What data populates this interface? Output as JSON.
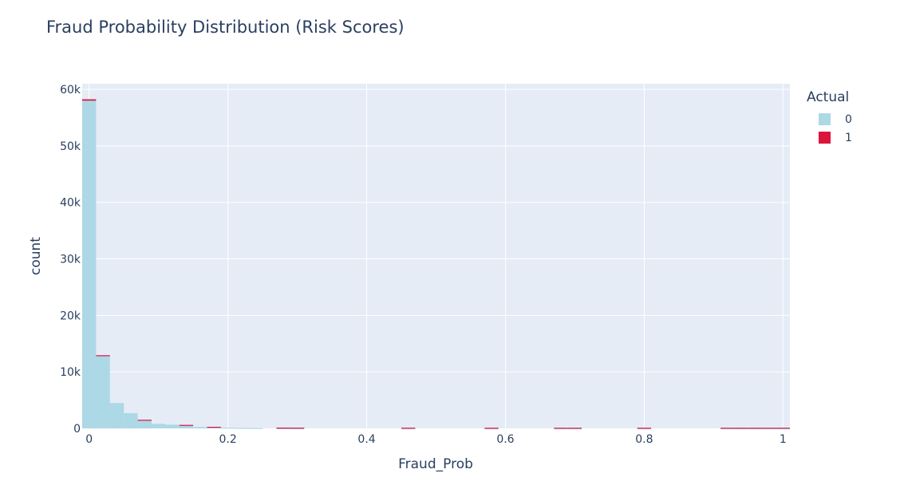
{
  "title": "Fraud Probability Distribution (Risk Scores)",
  "legend": {
    "title": "Actual",
    "items": [
      {
        "label": "0",
        "color": "#add8e6"
      },
      {
        "label": "1",
        "color": "#dc143c"
      }
    ]
  },
  "chart_data": {
    "type": "bar",
    "barmode": "stacked histogram",
    "title": "Fraud Probability Distribution (Risk Scores)",
    "xlabel": "Fraud_Prob",
    "ylabel": "count",
    "xlim": [
      -0.01,
      1.01
    ],
    "ylim": [
      0,
      61000
    ],
    "x_ticks": [
      0,
      0.2,
      0.4,
      0.6,
      0.8,
      1
    ],
    "x_tick_labels": [
      "0",
      "0.2",
      "0.4",
      "0.6",
      "0.8",
      "1"
    ],
    "y_ticks": [
      0,
      10000,
      20000,
      30000,
      40000,
      50000,
      60000
    ],
    "y_tick_labels": [
      "0",
      "10k",
      "20k",
      "30k",
      "40k",
      "50k",
      "60k"
    ],
    "grid": true,
    "legend_placement": "right",
    "bin_width": 0.02,
    "bin_starts": [
      -0.01,
      0.01,
      0.03,
      0.05,
      0.07,
      0.09,
      0.11,
      0.13,
      0.15,
      0.17,
      0.19,
      0.21,
      0.23,
      0.27,
      0.29,
      0.45,
      0.57,
      0.67,
      0.69,
      0.79,
      0.91,
      0.93,
      0.95,
      0.97,
      0.99
    ],
    "series": [
      {
        "name": "0",
        "color": "#add8e6",
        "values": [
          58000,
          12800,
          4500,
          2700,
          1400,
          800,
          650,
          500,
          250,
          180,
          130,
          90,
          70,
          30,
          20,
          10,
          5,
          5,
          5,
          5,
          5,
          5,
          5,
          5,
          5
        ]
      },
      {
        "name": "1",
        "color": "#dc143c",
        "values": [
          250,
          150,
          0,
          0,
          130,
          0,
          0,
          120,
          0,
          100,
          0,
          0,
          0,
          110,
          110,
          110,
          110,
          110,
          110,
          110,
          110,
          110,
          110,
          110,
          110
        ]
      }
    ]
  }
}
